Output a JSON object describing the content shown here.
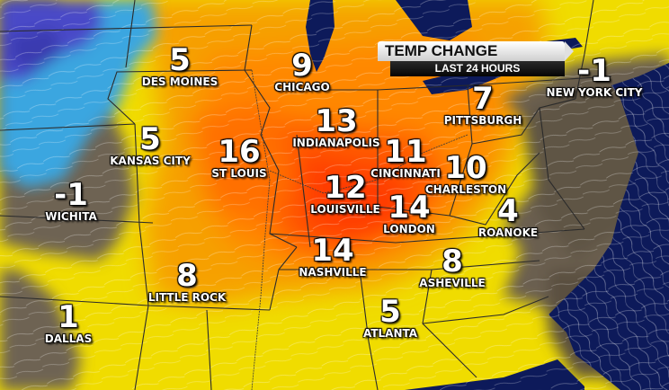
{
  "title": {
    "main": "TEMP CHANGE",
    "sub": "LAST 24 HOURS"
  },
  "colors": {
    "cold": "#4a4ac8",
    "cool": "#3aa6e0",
    "neutral": "#6b5f4f",
    "mild": "#f2e600",
    "warm": "#f6a000",
    "hot": "#ff6a00",
    "water": "#0d1a5a"
  },
  "cities": [
    {
      "id": "des-moines",
      "name": "DES MOINES",
      "value": "5"
    },
    {
      "id": "chicago",
      "name": "CHICAGO",
      "value": "9"
    },
    {
      "id": "new-york-city",
      "name": "NEW YORK CITY",
      "value": "-1"
    },
    {
      "id": "pittsburgh",
      "name": "PITTSBURGH",
      "value": "7"
    },
    {
      "id": "kansas-city",
      "name": "KANSAS CITY",
      "value": "5"
    },
    {
      "id": "st-louis",
      "name": "ST LOUIS",
      "value": "16"
    },
    {
      "id": "indianapolis",
      "name": "INDIANAPOLIS",
      "value": "13"
    },
    {
      "id": "cincinnati",
      "name": "CINCINNATI",
      "value": "11"
    },
    {
      "id": "charleston",
      "name": "CHARLESTON",
      "value": "10"
    },
    {
      "id": "wichita",
      "name": "WICHITA",
      "value": "-1"
    },
    {
      "id": "louisville",
      "name": "LOUISVILLE",
      "value": "12"
    },
    {
      "id": "london",
      "name": "LONDON",
      "value": "14"
    },
    {
      "id": "roanoke",
      "name": "ROANOKE",
      "value": "4"
    },
    {
      "id": "nashville",
      "name": "NASHVILLE",
      "value": "14"
    },
    {
      "id": "asheville",
      "name": "ASHEVILLE",
      "value": "8"
    },
    {
      "id": "little-rock",
      "name": "LITTLE ROCK",
      "value": "8"
    },
    {
      "id": "dallas",
      "name": "DALLAS",
      "value": "1"
    },
    {
      "id": "atlanta",
      "name": "ATLANTA",
      "value": "5"
    }
  ]
}
